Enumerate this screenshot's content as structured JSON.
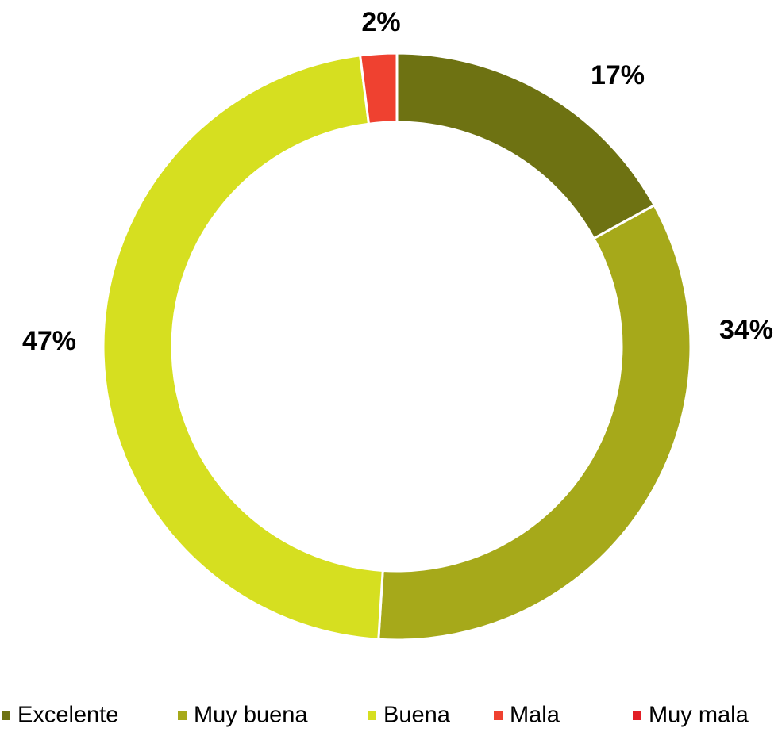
{
  "chart_data": {
    "type": "donut",
    "categories": [
      "Excelente",
      "Muy buena",
      "Buena",
      "Mala",
      "Muy mala"
    ],
    "values": [
      17,
      34,
      47,
      2,
      0
    ],
    "value_labels": [
      "17%",
      "34%",
      "47%",
      "2%",
      null
    ],
    "colors": [
      "#6e7212",
      "#a6a91a",
      "#d6df20",
      "#ef4130",
      "#e21e26"
    ],
    "legend": "bottom"
  }
}
